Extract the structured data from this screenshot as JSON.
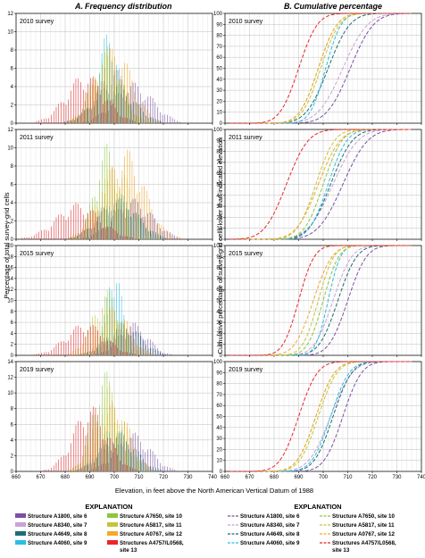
{
  "panel_a": {
    "label": "A.",
    "title": "Frequency distribution"
  },
  "panel_b": {
    "label": "B.",
    "title": "Cumulative percentage"
  },
  "y_label_a": "Percentage of total survey-grid cells",
  "y_label_b": "Cumulative percentage of survey-grid cells lower than indicated elevation",
  "x_label": "Elevation, in feet above the North American Vertical Datum of 1988",
  "legend_title": "EXPLANATION",
  "chart_data": [
    {
      "type": "bar",
      "panel": "A",
      "x": [
        660,
        740
      ],
      "xticks": [
        660,
        670,
        680,
        690,
        700,
        710,
        720,
        730,
        740
      ],
      "rows": [
        {
          "label": "2010 survey",
          "ylim": [
            0,
            12
          ],
          "yticks": [
            0,
            2,
            4,
            6,
            8,
            10,
            12
          ],
          "series": [
            {
              "name": "Structure A1800, site 6",
              "mu": 708,
              "sd": 8,
              "peak": 4.5
            },
            {
              "name": "Structure A8340, site 7",
              "mu": 700,
              "sd": 7,
              "peak": 6
            },
            {
              "name": "Structure A4649, site 8",
              "mu": 700,
              "sd": 8,
              "peak": 4.5
            },
            {
              "name": "Structure A4060, site 9",
              "mu": 698,
              "sd": 4,
              "peak": 10.5
            },
            {
              "name": "Structure A7650, site 10",
              "mu": 697,
              "sd": 6,
              "peak": 8
            },
            {
              "name": "Structure A5817, site 11",
              "mu": 697,
              "sd": 6,
              "peak": 8.5
            },
            {
              "name": "Structure A0767, site 12",
              "mu": 700,
              "sd": 7,
              "peak": 8.5
            },
            {
              "name": "Structures A4757/L0568, site 13",
              "mu": 688,
              "sd": 8,
              "peak": 5.5
            }
          ]
        },
        {
          "label": "2011 survey",
          "ylim": [
            0,
            12
          ],
          "yticks": [
            0,
            2,
            4,
            6,
            8,
            10,
            12
          ],
          "series": [
            {
              "name": "Structure A1800, site 6",
              "mu": 708,
              "sd": 8,
              "peak": 4.5
            },
            {
              "name": "Structure A8340, site 7",
              "mu": 700,
              "sd": 7,
              "peak": 4.5
            },
            {
              "name": "Structure A4649, site 8",
              "mu": 702,
              "sd": 8,
              "peak": 4.5
            },
            {
              "name": "Structure A4060, site 9",
              "mu": 702,
              "sd": 7,
              "peak": 5
            },
            {
              "name": "Structure A7650, site 10",
              "mu": 697,
              "sd": 5,
              "peak": 10.5
            },
            {
              "name": "Structure A5817, site 11",
              "mu": 700,
              "sd": 7,
              "peak": 8.5
            },
            {
              "name": "Structure A0767, site 12",
              "mu": 704,
              "sd": 8,
              "peak": 10
            },
            {
              "name": "Structures A4757/L0568, site 13",
              "mu": 685,
              "sd": 9,
              "peak": 4
            }
          ]
        },
        {
          "label": "2015 survey",
          "ylim": [
            0,
            20
          ],
          "yticks": [
            0,
            2,
            4,
            6,
            8,
            10,
            12,
            14,
            16,
            18,
            20
          ],
          "series": [
            {
              "name": "Structure A1800, site 6",
              "mu": 708,
              "sd": 6,
              "peak": 6
            },
            {
              "name": "Structure A8340, site 7",
              "mu": 704,
              "sd": 6,
              "peak": 5
            },
            {
              "name": "Structure A4649, site 8",
              "mu": 704,
              "sd": 7,
              "peak": 6
            },
            {
              "name": "Structure A4060, site 9",
              "mu": 700,
              "sd": 3,
              "peak": 18
            },
            {
              "name": "Structure A7650, site 10",
              "mu": 699,
              "sd": 4,
              "peak": 10
            },
            {
              "name": "Structure A5817, site 11",
              "mu": 697,
              "sd": 6,
              "peak": 12
            },
            {
              "name": "Structure A0767, site 12",
              "mu": 700,
              "sd": 6,
              "peak": 9
            },
            {
              "name": "Structures A4757/L0568, site 13",
              "mu": 688,
              "sd": 8,
              "peak": 6
            }
          ]
        },
        {
          "label": "2019 survey",
          "ylim": [
            0,
            14
          ],
          "yticks": [
            0,
            2,
            4,
            6,
            8,
            10,
            12,
            14
          ],
          "series": [
            {
              "name": "Structure A1800, site 6",
              "mu": 708,
              "sd": 7,
              "peak": 5
            },
            {
              "name": "Structure A8340, site 7",
              "mu": 702,
              "sd": 7,
              "peak": 4.5
            },
            {
              "name": "Structure A4649, site 8",
              "mu": 702,
              "sd": 7,
              "peak": 5
            },
            {
              "name": "Structure A4060, site 9",
              "mu": 700,
              "sd": 6,
              "peak": 6
            },
            {
              "name": "Structure A7650, site 10",
              "mu": 696,
              "sd": 5,
              "peak": 13
            },
            {
              "name": "Structure A5817, site 11",
              "mu": 698,
              "sd": 6,
              "peak": 11
            },
            {
              "name": "Structure A0767, site 12",
              "mu": 700,
              "sd": 6,
              "peak": 9
            },
            {
              "name": "Structures A4757/L0568, site 13",
              "mu": 690,
              "sd": 7,
              "peak": 8.5
            }
          ]
        }
      ]
    },
    {
      "type": "line",
      "panel": "B",
      "x": [
        660,
        740
      ],
      "xticks": [
        660,
        670,
        680,
        690,
        700,
        710,
        720,
        730,
        740
      ],
      "ylim": [
        0,
        100
      ],
      "yticks": [
        0,
        10,
        20,
        30,
        40,
        50,
        60,
        70,
        80,
        90,
        100
      ],
      "rows": [
        {
          "label": "2010 survey",
          "series": [
            {
              "name": "Structure A1800, site 6",
              "mu": 711,
              "sd": 7.5
            },
            {
              "name": "Structure A8340, site 7",
              "mu": 708,
              "sd": 8
            },
            {
              "name": "Structure A4649, site 8",
              "mu": 702,
              "sd": 7
            },
            {
              "name": "Structure A4060, site 9",
              "mu": 701,
              "sd": 5
            },
            {
              "name": "Structure A7650, site 10",
              "mu": 698,
              "sd": 6
            },
            {
              "name": "Structure A5817, site 11",
              "mu": 699,
              "sd": 6
            },
            {
              "name": "Structure A0767, site 12",
              "mu": 698,
              "sd": 6
            },
            {
              "name": "Structures A4757/L0568, site 13",
              "mu": 690,
              "sd": 6
            }
          ]
        },
        {
          "label": "2011 survey",
          "series": [
            {
              "name": "Structure A1800, site 6",
              "mu": 708,
              "sd": 8
            },
            {
              "name": "Structure A8340, site 7",
              "mu": 704,
              "sd": 8
            },
            {
              "name": "Structure A4649, site 8",
              "mu": 703,
              "sd": 7
            },
            {
              "name": "Structure A4060, site 9",
              "mu": 702,
              "sd": 6
            },
            {
              "name": "Structure A7650, site 10",
              "mu": 700,
              "sd": 6
            },
            {
              "name": "Structure A5817, site 11",
              "mu": 697,
              "sd": 6
            },
            {
              "name": "Structure A0767, site 12",
              "mu": 698,
              "sd": 7
            },
            {
              "name": "Structures A4757/L0568, site 13",
              "mu": 685,
              "sd": 7
            }
          ]
        },
        {
          "label": "2015 survey",
          "series": [
            {
              "name": "Structure A1800, site 6",
              "mu": 710,
              "sd": 6
            },
            {
              "name": "Structure A8340, site 7",
              "mu": 704,
              "sd": 6
            },
            {
              "name": "Structure A4649, site 8",
              "mu": 706,
              "sd": 6
            },
            {
              "name": "Structure A4060, site 9",
              "mu": 702,
              "sd": 4
            },
            {
              "name": "Structure A7650, site 10",
              "mu": 700,
              "sd": 5
            },
            {
              "name": "Structure A5817, site 11",
              "mu": 698,
              "sd": 5
            },
            {
              "name": "Structure A0767, site 12",
              "mu": 696,
              "sd": 6
            },
            {
              "name": "Structures A4757/L0568, site 13",
              "mu": 690,
              "sd": 5
            }
          ]
        },
        {
          "label": "2019 survey",
          "series": [
            {
              "name": "Structure A1800, site 6",
              "mu": 708,
              "sd": 6
            },
            {
              "name": "Structure A8340, site 7",
              "mu": 703,
              "sd": 7
            },
            {
              "name": "Structure A4649, site 8",
              "mu": 704,
              "sd": 6
            },
            {
              "name": "Structure A4060, site 9",
              "mu": 703,
              "sd": 6
            },
            {
              "name": "Structure A7650, site 10",
              "mu": 697,
              "sd": 6
            },
            {
              "name": "Structure A5817, site 11",
              "mu": 698,
              "sd": 6
            },
            {
              "name": "Structure A0767, site 12",
              "mu": 697,
              "sd": 6
            },
            {
              "name": "Structures A4757/L0568, site 13",
              "mu": 690,
              "sd": 6
            }
          ]
        }
      ]
    }
  ],
  "legend": {
    "left": [
      {
        "name": "Structure A1800, site 6",
        "color": "#7b4fa3"
      },
      {
        "name": "Structure A7650, site 10",
        "color": "#8dc63f"
      },
      {
        "name": "Structure A8340, site 7",
        "color": "#c9a2d6"
      },
      {
        "name": "Structure A5817, site 11",
        "color": "#c7c43c"
      },
      {
        "name": "Structure A4649, site 8",
        "color": "#1b6e74"
      },
      {
        "name": "Structure A0767, site 12",
        "color": "#f2a92c"
      },
      {
        "name": "Structure A4060, site 9",
        "color": "#2dbde3"
      },
      {
        "name": "Structures A4757/L0568, site 13",
        "color": "#e8262b"
      }
    ],
    "right": [
      {
        "name": "Structure A1800, site 6",
        "color": "#7b4fa3"
      },
      {
        "name": "Structure A7650, site 10",
        "color": "#8dc63f"
      },
      {
        "name": "Structure A8340, site 7",
        "color": "#c9a2d6"
      },
      {
        "name": "Structure A5817, site 11",
        "color": "#c7c43c"
      },
      {
        "name": "Structure A4649, site 8",
        "color": "#1b6e74"
      },
      {
        "name": "Structure A0767, site 12",
        "color": "#f2a92c"
      },
      {
        "name": "Structure A4060, site 9",
        "color": "#2dbde3"
      },
      {
        "name": "Structures A4757/L0568, site 13",
        "color": "#e8262b"
      }
    ]
  },
  "colors": {
    "Structure A1800, site 6": "#7b4fa3",
    "Structure A8340, site 7": "#c9a2d6",
    "Structure A4649, site 8": "#1b6e74",
    "Structure A4060, site 9": "#2dbde3",
    "Structure A7650, site 10": "#8dc63f",
    "Structure A5817, site 11": "#c7c43c",
    "Structure A0767, site 12": "#f2a92c",
    "Structures A4757/L0568, site 13": "#e8262b"
  }
}
